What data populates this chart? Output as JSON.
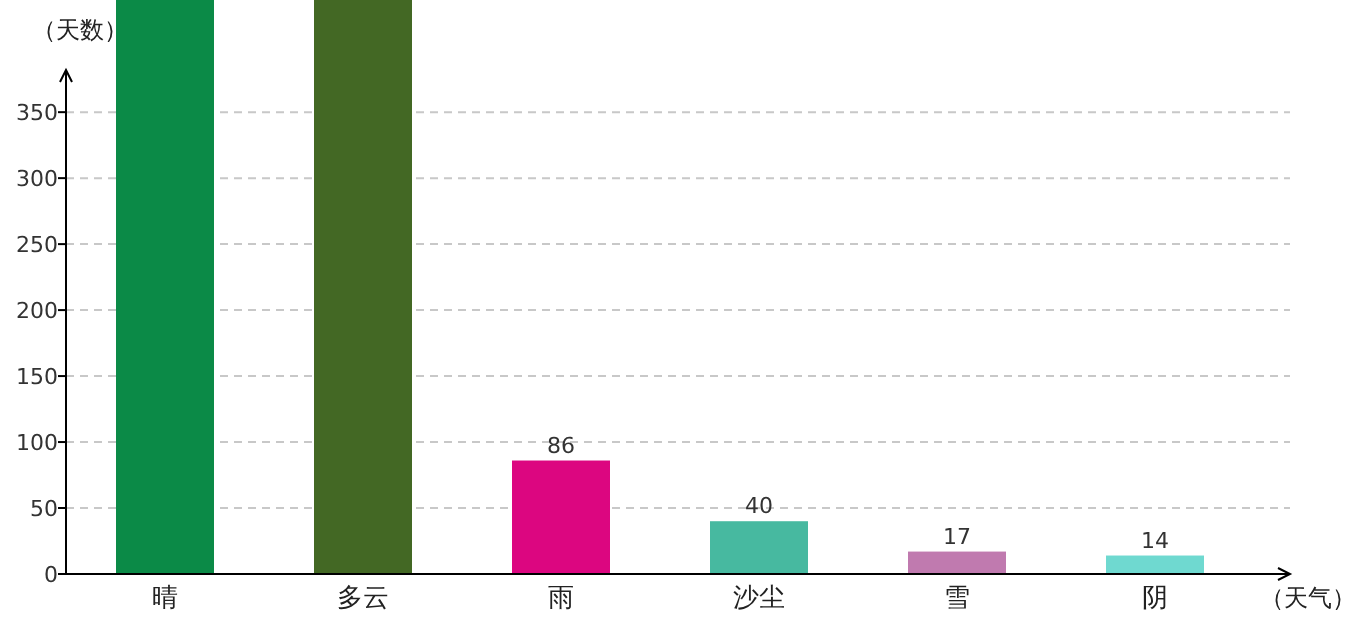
{
  "chart_data": {
    "type": "bar",
    "xlabel": "（天气）",
    "ylabel": "（天数）",
    "categories": [
      "晴",
      "多云",
      "雨",
      "沙尘",
      "雪",
      "阴"
    ],
    "values": [
      435,
      435,
      86,
      40,
      17,
      14
    ],
    "colors": [
      "#0b8a47",
      "#436824",
      "#dc0680",
      "#47b9a0",
      "#c07aaf",
      "#6fd9d0"
    ],
    "value_labels": [
      null,
      null,
      "86",
      "40",
      "17",
      "14"
    ],
    "ylim": [
      0,
      435
    ],
    "yticks": [
      0,
      50,
      100,
      150,
      200,
      250,
      300,
      350
    ],
    "grid": "y"
  }
}
